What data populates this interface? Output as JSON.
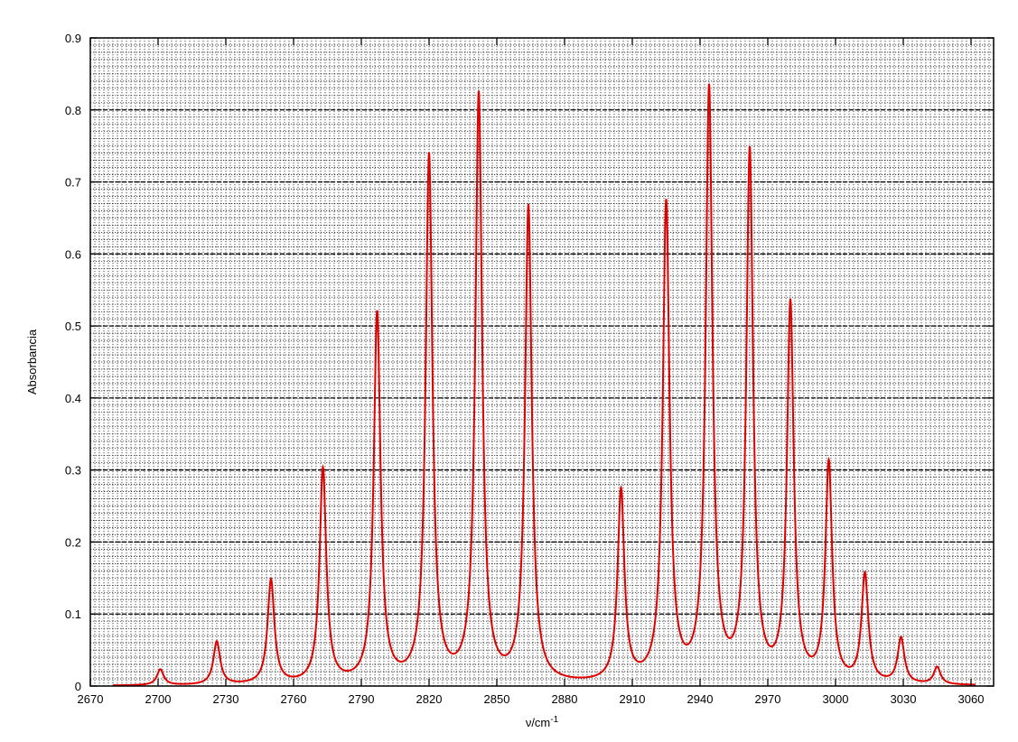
{
  "chart_data": {
    "type": "line",
    "title": "",
    "xlabel": "ν/cm",
    "xlabel_superscript": "-1",
    "ylabel": "Absorbancia",
    "xlim": [
      2670,
      3070
    ],
    "ylim": [
      0,
      0.9
    ],
    "xticks": [
      2670,
      2700,
      2730,
      2760,
      2790,
      2820,
      2850,
      2880,
      2910,
      2940,
      2970,
      3000,
      3030,
      3060
    ],
    "yticks": [
      0,
      0.1,
      0.2,
      0.3,
      0.4,
      0.5,
      0.6,
      0.7,
      0.8,
      0.9
    ],
    "ytick_labels": [
      "0",
      "0.1",
      "0.2",
      "0.3",
      "0.4",
      "0.5",
      "0.6",
      "0.7",
      "0.8",
      "0.9"
    ],
    "grid": true,
    "grid_style": "dotted, dense minor grid every 1 cm-1 and 0.01 absorbance",
    "line_color": "#e00000",
    "series": [
      {
        "peaks": [
          {
            "x": 2701,
            "y": 0.022
          },
          {
            "x": 2726,
            "y": 0.06
          },
          {
            "x": 2750,
            "y": 0.145
          },
          {
            "x": 2773,
            "y": 0.298
          },
          {
            "x": 2797,
            "y": 0.513
          },
          {
            "x": 2820,
            "y": 0.73
          },
          {
            "x": 2842,
            "y": 0.815
          },
          {
            "x": 2864,
            "y": 0.66
          },
          {
            "x": 2905,
            "y": 0.265
          },
          {
            "x": 2925,
            "y": 0.663
          },
          {
            "x": 2944,
            "y": 0.82
          },
          {
            "x": 2962,
            "y": 0.733
          },
          {
            "x": 2980,
            "y": 0.523
          },
          {
            "x": 2997,
            "y": 0.303
          },
          {
            "x": 3013,
            "y": 0.15
          },
          {
            "x": 3029,
            "y": 0.063
          },
          {
            "x": 3045,
            "y": 0.024
          }
        ],
        "x_range": [
          2680,
          3062
        ],
        "lorentzian_hwhm": 1.8
      }
    ]
  }
}
